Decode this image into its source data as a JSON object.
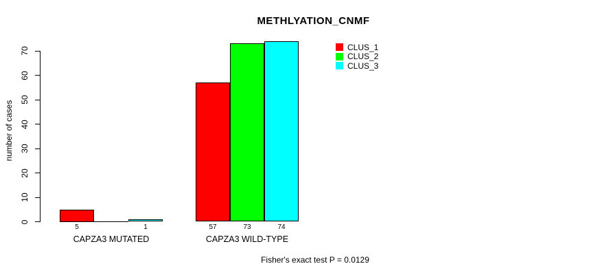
{
  "title": "METHLYATION_CNMF",
  "y_axis": {
    "label": "number of cases"
  },
  "footer": "Fisher's exact test P = 0.0129",
  "legend": [
    {
      "label": "CLUS_1",
      "color": "#ff0000"
    },
    {
      "label": "CLUS_2",
      "color": "#00ff00"
    },
    {
      "label": "CLUS_3",
      "color": "#00ffff"
    }
  ],
  "chart_data": {
    "type": "bar",
    "title": "METHLYATION_CNMF",
    "ylabel": "number of cases",
    "xlabel": "",
    "categories": [
      "CAPZA3 MUTATED",
      "CAPZA3 WILD-TYPE"
    ],
    "series": [
      {
        "name": "CLUS_1",
        "color": "#ff0000",
        "values": [
          5,
          57
        ]
      },
      {
        "name": "CLUS_2",
        "color": "#00ff00",
        "values": [
          0,
          73
        ]
      },
      {
        "name": "CLUS_3",
        "color": "#00ffff",
        "values": [
          1,
          74
        ]
      }
    ],
    "bar_value_labels": [
      [
        "5",
        "",
        "1"
      ],
      [
        "57",
        "73",
        "74"
      ]
    ],
    "yticks": [
      0,
      10,
      20,
      30,
      40,
      50,
      60,
      70
    ],
    "ylim": [
      0,
      74
    ],
    "grid": false,
    "legend_position": "top-right",
    "annotation": "Fisher's exact test P = 0.0129"
  }
}
